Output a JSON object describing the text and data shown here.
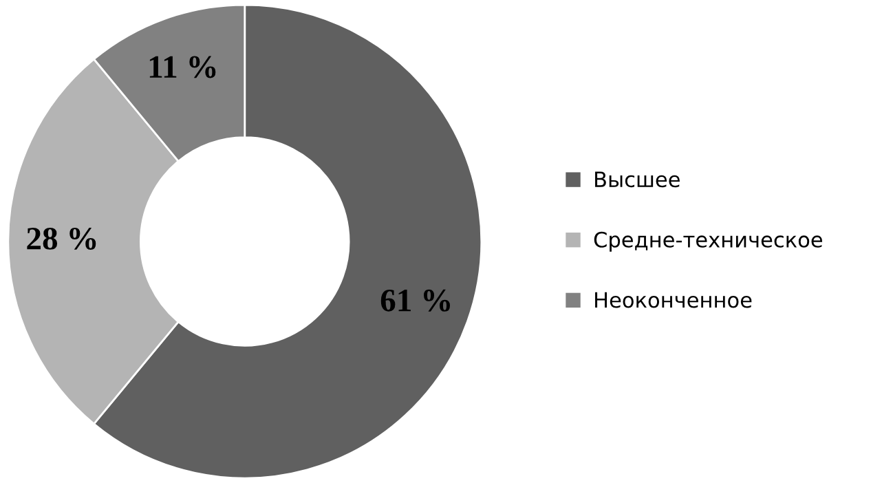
{
  "chart_data": {
    "type": "donut",
    "categories": [
      "Высшее",
      "Средне-техническое",
      "Неоконченное"
    ],
    "values": [
      61,
      28,
      11
    ],
    "colors": [
      "#606060",
      "#b4b4b4",
      "#818181"
    ],
    "value_labels": [
      "61 %",
      "28 %",
      "11 %"
    ],
    "legend": "right"
  }
}
